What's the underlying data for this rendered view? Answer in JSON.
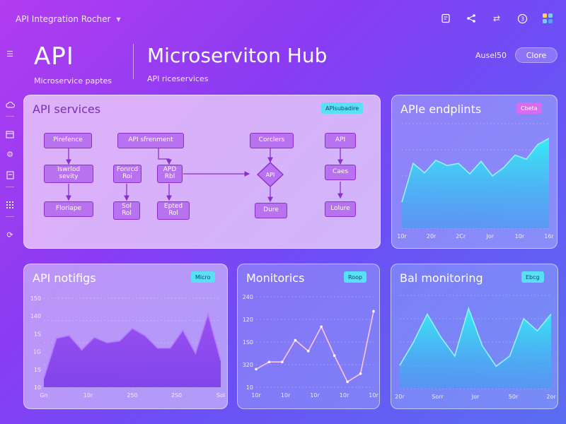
{
  "header": {
    "app_title": "API Integration Rocher",
    "icons": [
      "note-icon",
      "share-icon",
      "swap-icon",
      "help-icon",
      "apps-icon"
    ]
  },
  "sidebar": {
    "icons": [
      "menu-icon",
      "cloud-icon",
      "calendar-icon",
      "settings-icon",
      "document-icon",
      "grid-icon",
      "refresh-icon"
    ]
  },
  "hero": {
    "api_label": "API",
    "api_subtitle": "Microservice paptes",
    "hub_title": "Microserviton Hub",
    "hub_subtitle": "API riceservices",
    "user": "Ausel50",
    "clone_button": "Clore"
  },
  "services_panel": {
    "title": "API services",
    "tag": "APIsubadire",
    "nodes": [
      {
        "id": "n1",
        "label": "Pirefence"
      },
      {
        "id": "n2",
        "label": "API sfrenment"
      },
      {
        "id": "n3",
        "label": "Corclers"
      },
      {
        "id": "n4",
        "label": "API"
      },
      {
        "id": "n5",
        "label": "Iswrlod\nsevity"
      },
      {
        "id": "n6",
        "label": "Fonrcd\nRoi"
      },
      {
        "id": "n7",
        "label": "APD\nRbl"
      },
      {
        "id": "n8",
        "label": "API"
      },
      {
        "id": "n9",
        "label": "Caes"
      },
      {
        "id": "n10",
        "label": "Floriape"
      },
      {
        "id": "n11",
        "label": "Sol\nRol"
      },
      {
        "id": "n12",
        "label": "Epted\nRol"
      },
      {
        "id": "n13",
        "label": "Dure"
      },
      {
        "id": "n14",
        "label": "Lolure"
      }
    ]
  },
  "endpoints_panel": {
    "title": "APIe endplints",
    "tag": "Cbeta",
    "x_labels": [
      "10r",
      "20r",
      "2Cr",
      "Jor",
      "10r",
      "16r"
    ]
  },
  "notifs_panel": {
    "title": "API notifigs",
    "tag": "Micro",
    "y_labels": [
      "150",
      "140",
      "1S",
      "1G",
      "1S",
      "10"
    ],
    "x_labels": [
      "Gn",
      "10r",
      "250",
      "2S0",
      "Sol"
    ]
  },
  "monitorics_panel": {
    "title": "Monitorics",
    "tag": "Roop",
    "y_labels": [
      "240",
      "120",
      "1S0",
      "320",
      "10"
    ],
    "x_labels": [
      "10r",
      "10r",
      "10r",
      "10r",
      "10r"
    ]
  },
  "bal_panel": {
    "title": "Bal monitoring",
    "tag": "Ebcg",
    "x_labels": [
      "20r",
      "Sorr",
      "Jor",
      "50r",
      "2or"
    ]
  },
  "chart_data": [
    {
      "type": "area",
      "series": [
        {
          "values": [
            0.25,
            0.62,
            0.53,
            0.65,
            0.6,
            0.62,
            0.52,
            0.64,
            0.5,
            0.58,
            0.7,
            0.66,
            0.8,
            0.86
          ]
        }
      ]
    },
    {
      "type": "area",
      "series": [
        {
          "values": [
            0.1,
            0.55,
            0.58,
            0.42,
            0.56,
            0.5,
            0.52,
            0.66,
            0.58,
            0.44,
            0.44,
            0.64,
            0.38,
            0.82,
            0.3
          ]
        }
      ]
    },
    {
      "type": "line",
      "series": [
        {
          "values": [
            0.2,
            0.28,
            0.28,
            0.52,
            0.4,
            0.67,
            0.35,
            0.06,
            0.15,
            0.84
          ]
        }
      ]
    },
    {
      "type": "area",
      "series": [
        {
          "values": [
            0.25,
            0.5,
            0.8,
            0.55,
            0.35,
            0.86,
            0.46,
            0.24,
            0.35,
            0.75,
            0.62,
            0.8
          ]
        }
      ]
    }
  ],
  "colors": {
    "accent_cyan": "#59e0f6",
    "accent_magenta": "#d86cf0",
    "node_fill": "#b872f0",
    "node_border": "#8b2fcf"
  }
}
